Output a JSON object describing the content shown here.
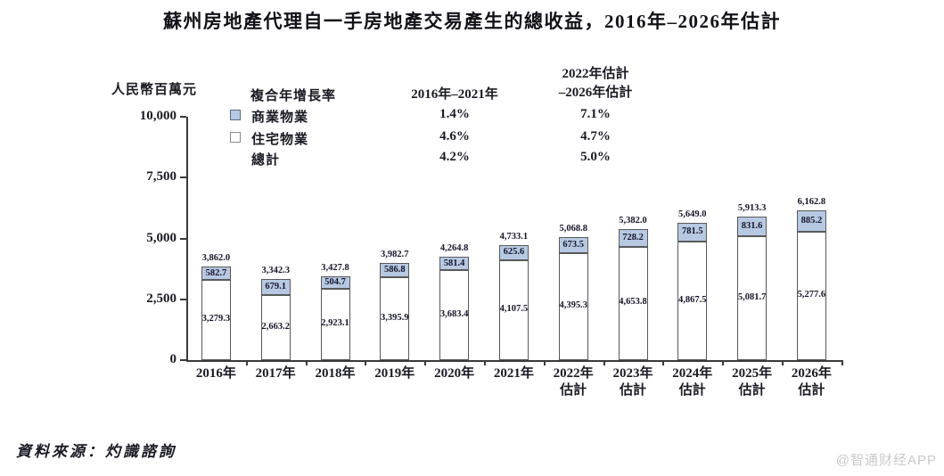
{
  "title": "蘇州房地產代理自一手房地產交易產生的總收益，2016年–2026年估計",
  "y_axis": {
    "unit_label": "人民幣百萬元",
    "tick_labels": [
      "0",
      "2,500",
      "5,000",
      "7,500",
      "10,000"
    ],
    "tick_values": [
      0,
      2500,
      5000,
      7500,
      10000
    ]
  },
  "legend": {
    "title": "複合年增長率",
    "col1_header": "2016年–2021年",
    "col2_header_line1": "2022年估計",
    "col2_header_line2": "–2026年估計",
    "rows": [
      {
        "swatch": "commercial-blue",
        "label": "商業物業",
        "cagr_2016_2021": "1.4%",
        "cagr_2022_2026": "7.1%"
      },
      {
        "swatch": "residential-white",
        "label": "住宅物業",
        "cagr_2016_2021": "4.6%",
        "cagr_2022_2026": "4.7%"
      },
      {
        "swatch": "none",
        "label": "總計",
        "cagr_2016_2021": "4.2%",
        "cagr_2022_2026": "5.0%"
      }
    ]
  },
  "chart_data": {
    "type": "bar",
    "stacked": true,
    "title": "蘇州房地產代理自一手房地產交易產生的總收益，2016年–2026年估計",
    "ylabel": "人民幣百萬元",
    "ylim": [
      0,
      10000
    ],
    "grid": false,
    "legend_position": "top-left",
    "categories": [
      "2016年",
      "2017年",
      "2018年",
      "2019年",
      "2020年",
      "2021年",
      "2022年 估計",
      "2023年 估計",
      "2024年 估計",
      "2025年 估計",
      "2026年 估計"
    ],
    "series": [
      {
        "name": "住宅物業",
        "color": "#ffffff",
        "values": [
          3279.3,
          2663.2,
          2923.1,
          3395.9,
          3683.4,
          4107.5,
          4395.3,
          4653.8,
          4867.5,
          5081.7,
          5277.6
        ]
      },
      {
        "name": "商業物業",
        "color": "#b7c9e2",
        "values": [
          582.7,
          679.1,
          504.7,
          586.8,
          581.4,
          625.6,
          673.5,
          728.2,
          781.5,
          831.6,
          885.2
        ]
      }
    ],
    "totals": [
      3862.0,
      3342.3,
      3427.8,
      3982.7,
      4264.8,
      4733.1,
      5068.8,
      5382.0,
      5649.0,
      5913.3,
      6162.8
    ]
  },
  "source": {
    "text": "資料來源：灼識諮詢"
  },
  "watermark": {
    "text": "@智通财经APP"
  },
  "colors": {
    "commercial_fill": "#b7c9e2",
    "residential_fill": "#ffffff",
    "bar_border": "#595959",
    "axis": "#3a3a3a",
    "text": "#1a1a24",
    "watermark": "#c9c9c9"
  }
}
